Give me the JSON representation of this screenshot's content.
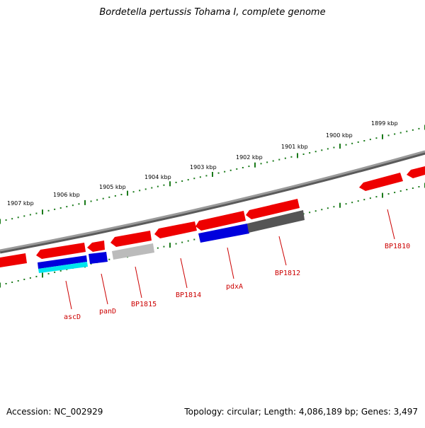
{
  "title": "Bordetella pertussis Tohama I, complete genome",
  "footer": {
    "accession": "Accession: NC_002929",
    "summary": "Topology: circular; Length: 4,086,189 bp; Genes: 3,497"
  },
  "ruler_labels": [
    "1907 kbp",
    "1906 kbp",
    "1905 kbp",
    "1904 kbp",
    "1903 kbp",
    "1902 kbp",
    "1901 kbp",
    "1900 kbp",
    "1899 kbp"
  ],
  "gene_labels": [
    "ascD",
    "panD",
    "BP1815",
    "BP1814",
    "pdxA",
    "BP1812",
    "BP1810"
  ],
  "colors": {
    "gene": "#ee0000",
    "backbone": "#808080",
    "tick": "#1a7a1a",
    "label": "#cc0000",
    "feature_blue": "#0000dd",
    "feature_cyan": "#00e5ee",
    "feature_gray": "#bbbbbb",
    "feature_dark": "#555555"
  }
}
